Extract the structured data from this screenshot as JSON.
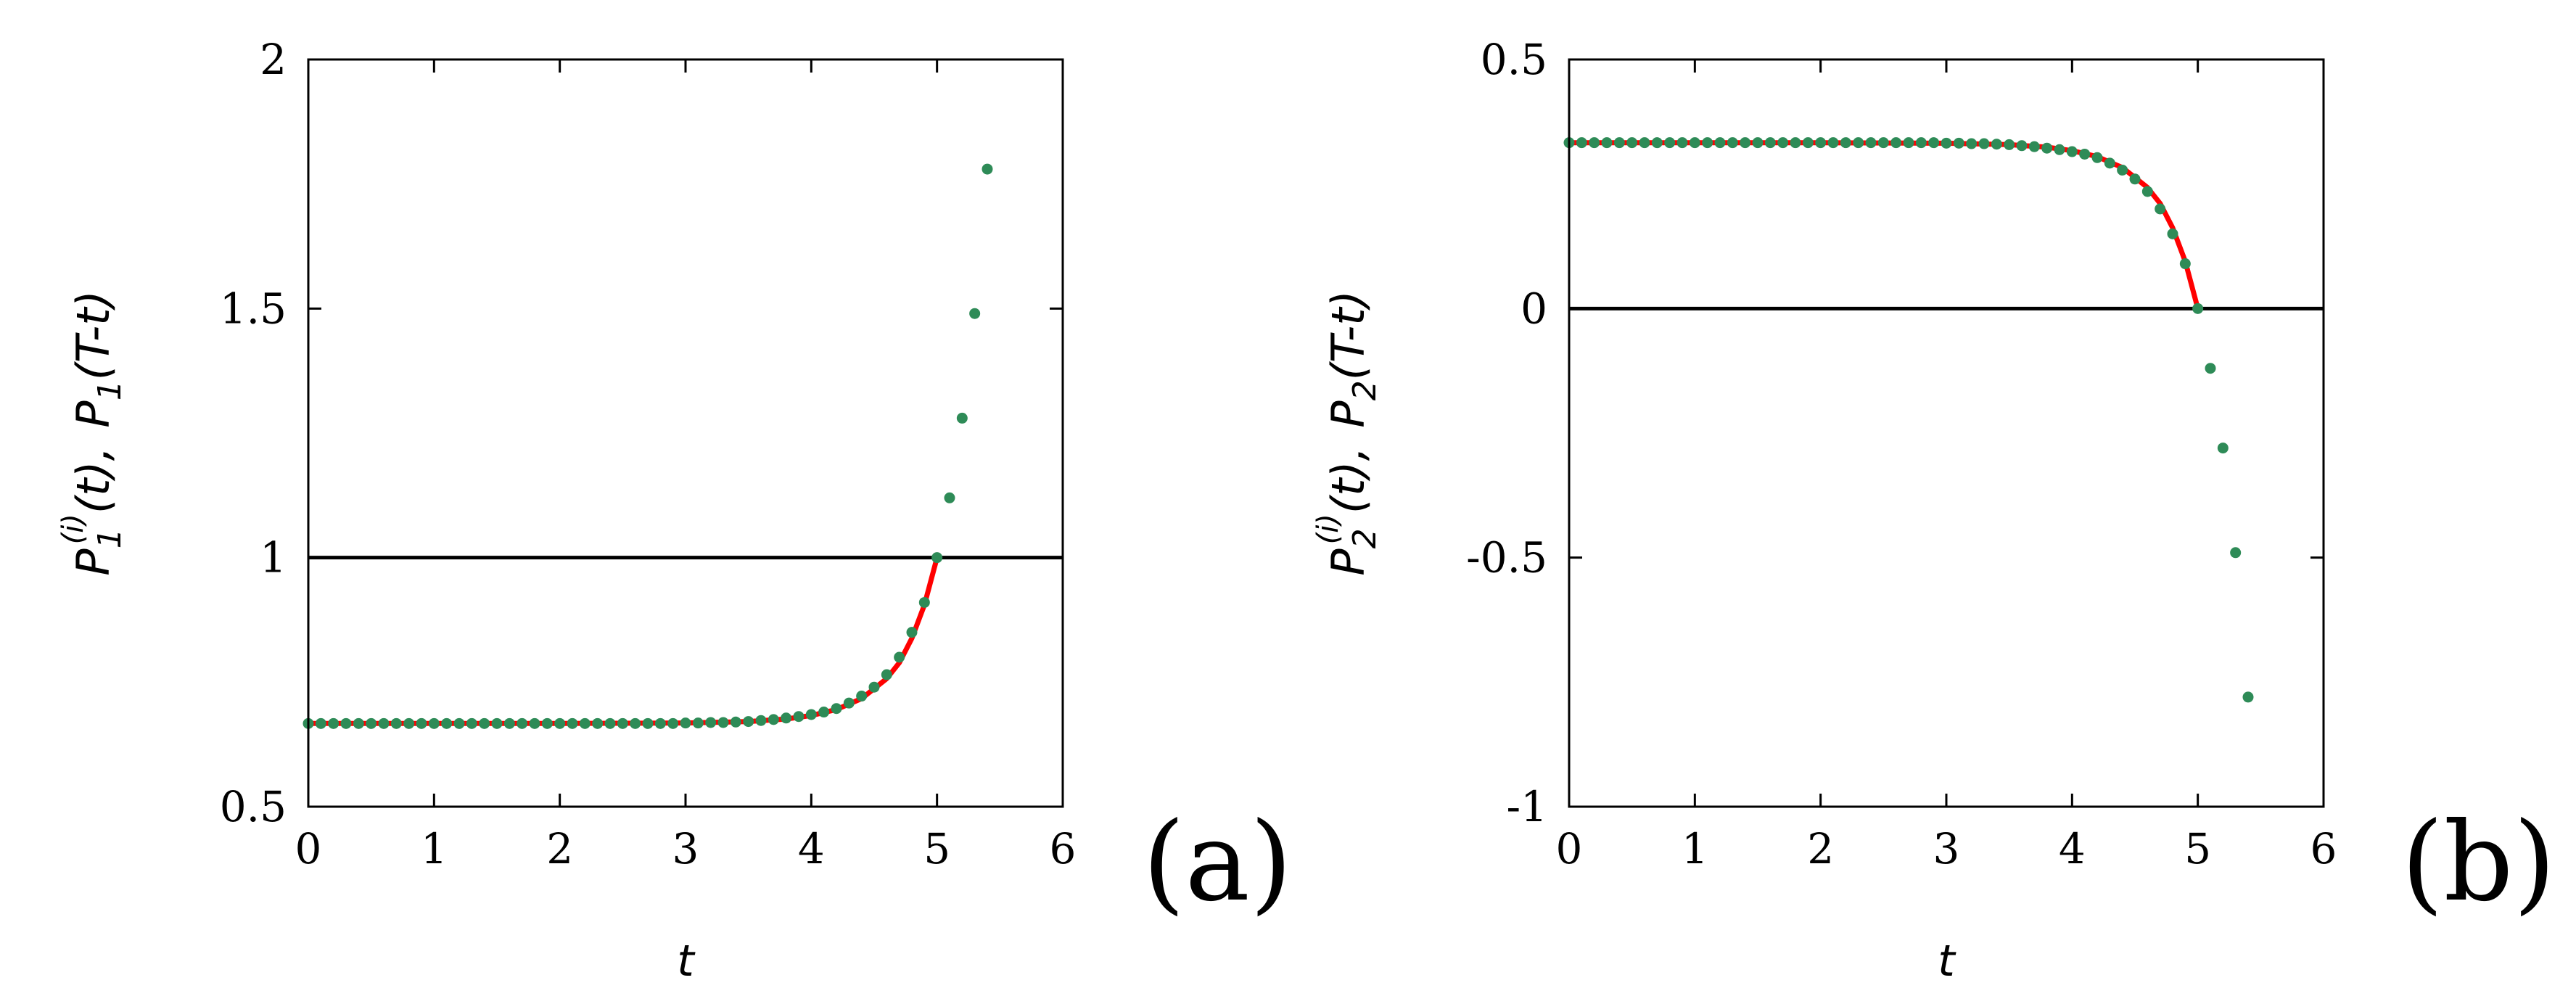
{
  "chart_data": [
    {
      "type": "line",
      "panel_label": "(a)",
      "xlabel": "t",
      "ylabel": {
        "sym": "P",
        "sub": "1",
        "sup": "(i)",
        "arg": "(t),",
        "sym2": "P",
        "sub2": "1",
        "arg2": "(T-t)"
      },
      "xlim": [
        0,
        6
      ],
      "ylim": [
        0.5,
        2
      ],
      "xticks": [
        "0",
        "1",
        "2",
        "3",
        "4",
        "5",
        "6"
      ],
      "yticks": [
        "0.5",
        "1",
        "1.5",
        "2"
      ],
      "xtick_values": [
        0,
        1,
        2,
        3,
        4,
        5,
        6
      ],
      "ytick_values": [
        0.5,
        1,
        1.5,
        2
      ],
      "reference_line": 1,
      "series": [
        {
          "kind": "curve",
          "color": "#ff0000",
          "x": [
            0,
            1,
            2,
            3,
            3.5,
            3.8,
            4.0,
            4.2,
            4.4,
            4.6,
            4.7,
            4.8,
            4.9,
            5.0
          ],
          "y": [
            0.667,
            0.667,
            0.667,
            0.668,
            0.671,
            0.676,
            0.683,
            0.695,
            0.717,
            0.757,
            0.789,
            0.838,
            0.905,
            1.0
          ]
        },
        {
          "kind": "points",
          "color": "#2e8b57",
          "x": [
            0,
            0.1,
            0.2,
            0.3,
            0.4,
            0.5,
            0.6,
            0.7,
            0.8,
            0.9,
            1.0,
            1.1,
            1.2,
            1.3,
            1.4,
            1.5,
            1.6,
            1.7,
            1.8,
            1.9,
            2.0,
            2.1,
            2.2,
            2.3,
            2.4,
            2.5,
            2.6,
            2.7,
            2.8,
            2.9,
            3.0,
            3.1,
            3.2,
            3.3,
            3.4,
            3.5,
            3.6,
            3.7,
            3.8,
            3.9,
            4.0,
            4.1,
            4.2,
            4.3,
            4.4,
            4.5,
            4.6,
            4.7,
            4.8,
            4.9,
            5.0,
            5.1,
            5.2,
            5.3,
            5.4
          ],
          "y": [
            0.667,
            0.667,
            0.667,
            0.667,
            0.667,
            0.667,
            0.667,
            0.667,
            0.667,
            0.667,
            0.667,
            0.667,
            0.667,
            0.667,
            0.667,
            0.667,
            0.667,
            0.667,
            0.667,
            0.667,
            0.667,
            0.667,
            0.667,
            0.667,
            0.667,
            0.667,
            0.667,
            0.667,
            0.667,
            0.667,
            0.668,
            0.668,
            0.669,
            0.669,
            0.67,
            0.671,
            0.673,
            0.675,
            0.678,
            0.681,
            0.685,
            0.69,
            0.697,
            0.708,
            0.722,
            0.74,
            0.765,
            0.8,
            0.85,
            0.91,
            1.0,
            1.12,
            1.28,
            1.49,
            1.78
          ]
        }
      ]
    },
    {
      "type": "line",
      "panel_label": "(b)",
      "xlabel": "t",
      "ylabel": {
        "sym": "P",
        "sub": "2",
        "sup": "(i)",
        "arg": "(t),",
        "sym2": "P",
        "sub2": "2",
        "arg2": "(T-t)"
      },
      "xlim": [
        0,
        6
      ],
      "ylim": [
        -1,
        0.5
      ],
      "xticks": [
        "0",
        "1",
        "2",
        "3",
        "4",
        "5",
        "6"
      ],
      "yticks": [
        "-1",
        "-0.5",
        "0",
        "0.5"
      ],
      "xtick_values": [
        0,
        1,
        2,
        3,
        4,
        5,
        6
      ],
      "ytick_values": [
        -1,
        -0.5,
        0,
        0.5
      ],
      "reference_line": 0,
      "series": [
        {
          "kind": "curve",
          "color": "#ff0000",
          "x": [
            0,
            1,
            2,
            3,
            3.5,
            3.8,
            4.0,
            4.2,
            4.4,
            4.6,
            4.7,
            4.8,
            4.9,
            5.0
          ],
          "y": [
            0.333,
            0.333,
            0.333,
            0.332,
            0.329,
            0.324,
            0.317,
            0.305,
            0.283,
            0.243,
            0.211,
            0.162,
            0.095,
            0.0
          ]
        },
        {
          "kind": "points",
          "color": "#2e8b57",
          "x": [
            0,
            0.1,
            0.2,
            0.3,
            0.4,
            0.5,
            0.6,
            0.7,
            0.8,
            0.9,
            1.0,
            1.1,
            1.2,
            1.3,
            1.4,
            1.5,
            1.6,
            1.7,
            1.8,
            1.9,
            2.0,
            2.1,
            2.2,
            2.3,
            2.4,
            2.5,
            2.6,
            2.7,
            2.8,
            2.9,
            3.0,
            3.1,
            3.2,
            3.3,
            3.4,
            3.5,
            3.6,
            3.7,
            3.8,
            3.9,
            4.0,
            4.1,
            4.2,
            4.3,
            4.4,
            4.5,
            4.6,
            4.7,
            4.8,
            4.9,
            5.0,
            5.1,
            5.2,
            5.3,
            5.4
          ],
          "y": [
            0.333,
            0.333,
            0.333,
            0.333,
            0.333,
            0.333,
            0.333,
            0.333,
            0.333,
            0.333,
            0.333,
            0.333,
            0.333,
            0.333,
            0.333,
            0.333,
            0.333,
            0.333,
            0.333,
            0.333,
            0.333,
            0.333,
            0.333,
            0.333,
            0.333,
            0.333,
            0.333,
            0.333,
            0.333,
            0.333,
            0.332,
            0.332,
            0.331,
            0.331,
            0.33,
            0.329,
            0.327,
            0.325,
            0.322,
            0.319,
            0.315,
            0.31,
            0.303,
            0.292,
            0.278,
            0.26,
            0.235,
            0.2,
            0.15,
            0.09,
            0.0,
            -0.12,
            -0.28,
            -0.49,
            -0.78
          ]
        }
      ]
    }
  ]
}
